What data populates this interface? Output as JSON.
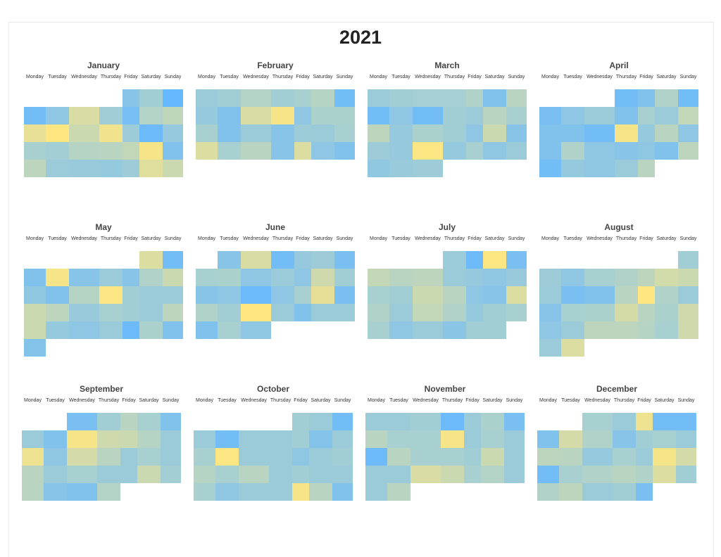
{
  "chart_data": {
    "type": "heatmap",
    "title": "2021",
    "year": 2021,
    "weekdays": [
      "Monday",
      "Tuesday",
      "Wednesday",
      "Thursday",
      "Friday",
      "Saturday",
      "Sunday"
    ],
    "color_scale": [
      "#66b8ff",
      "#a8d0d0",
      "#ffe680"
    ],
    "value_range": [
      0,
      1
    ],
    "months": [
      {
        "name": "January",
        "start_offset": 4,
        "days": 31,
        "values": [
          0.25,
          0.45,
          0.0,
          0.1,
          0.3,
          0.78,
          0.44,
          0.12,
          0.56,
          0.64,
          0.86,
          1.0,
          0.7,
          0.92,
          0.42,
          0.05,
          0.36,
          0.5,
          0.46,
          0.58,
          0.6,
          0.65,
          0.95,
          0.2,
          0.62,
          0.4,
          0.38,
          0.35,
          0.42,
          0.82,
          0.7
        ]
      },
      {
        "name": "February",
        "start_offset": 0,
        "days": 28,
        "values": [
          0.4,
          0.45,
          0.56,
          0.45,
          0.5,
          0.58,
          0.1,
          0.35,
          0.2,
          0.78,
          0.95,
          0.3,
          0.52,
          0.52,
          0.5,
          0.2,
          0.4,
          0.25,
          0.42,
          0.4,
          0.5,
          0.8,
          0.5,
          0.6,
          0.25,
          0.8,
          0.3,
          0.2
        ]
      },
      {
        "name": "March",
        "start_offset": 0,
        "days": 31,
        "values": [
          0.4,
          0.45,
          0.48,
          0.48,
          0.55,
          0.2,
          0.6,
          0.1,
          0.3,
          0.1,
          0.45,
          0.4,
          0.6,
          0.5,
          0.62,
          0.35,
          0.52,
          0.45,
          0.3,
          0.7,
          0.25,
          0.42,
          0.36,
          0.98,
          0.35,
          0.5,
          0.3,
          0.4,
          0.32,
          0.38,
          0.42
        ]
      },
      {
        "name": "April",
        "start_offset": 3,
        "days": 30,
        "values": [
          0.1,
          0.2,
          0.55,
          0.1,
          0.15,
          0.3,
          0.4,
          0.2,
          0.5,
          0.4,
          0.65,
          0.2,
          0.2,
          0.1,
          0.95,
          0.35,
          0.6,
          0.3,
          0.2,
          0.55,
          0.3,
          0.25,
          0.3,
          0.2,
          0.62,
          0.1,
          0.35,
          0.3,
          0.4,
          0.6
        ]
      },
      {
        "name": "May",
        "start_offset": 5,
        "days": 31,
        "values": [
          0.8,
          0.1,
          0.2,
          0.95,
          0.25,
          0.4,
          0.25,
          0.55,
          0.7,
          0.32,
          0.2,
          0.58,
          0.98,
          0.45,
          0.4,
          0.4,
          0.7,
          0.62,
          0.38,
          0.5,
          0.45,
          0.4,
          0.62,
          0.7,
          0.35,
          0.3,
          0.4,
          0.05,
          0.52,
          0.2,
          0.22
        ]
      },
      {
        "name": "June",
        "start_offset": 1,
        "days": 30,
        "values": [
          0.25,
          0.78,
          0.1,
          0.36,
          0.42,
          0.15,
          0.5,
          0.52,
          0.3,
          0.4,
          0.3,
          0.72,
          0.45,
          0.25,
          0.3,
          0.05,
          0.3,
          0.5,
          0.85,
          0.15,
          0.55,
          0.45,
          1.0,
          0.4,
          0.2,
          0.4,
          0.4,
          0.2,
          0.5,
          0.3
        ]
      },
      {
        "name": "July",
        "start_offset": 3,
        "days": 31,
        "values": [
          0.4,
          0.05,
          0.98,
          0.15,
          0.66,
          0.6,
          0.62,
          0.4,
          0.35,
          0.3,
          0.38,
          0.5,
          0.45,
          0.7,
          0.6,
          0.3,
          0.25,
          0.8,
          0.55,
          0.4,
          0.65,
          0.55,
          0.35,
          0.45,
          0.5,
          0.5,
          0.3,
          0.4,
          0.28,
          0.45,
          0.45
        ]
      },
      {
        "name": "August",
        "start_offset": 6,
        "days": 31,
        "values": [
          0.45,
          0.42,
          0.3,
          0.5,
          0.55,
          0.62,
          0.74,
          0.7,
          0.4,
          0.15,
          0.2,
          0.6,
          1.0,
          0.55,
          0.4,
          0.25,
          0.5,
          0.52,
          0.76,
          0.6,
          0.52,
          0.72,
          0.3,
          0.4,
          0.62,
          0.62,
          0.58,
          0.5,
          0.72,
          0.4,
          0.8
        ]
      },
      {
        "name": "September",
        "start_offset": 2,
        "days": 30,
        "values": [
          0.15,
          0.45,
          0.6,
          0.5,
          0.2,
          0.4,
          0.2,
          0.95,
          0.72,
          0.7,
          0.58,
          0.4,
          0.9,
          0.3,
          0.75,
          0.6,
          0.4,
          0.5,
          0.4,
          0.6,
          0.4,
          0.5,
          0.4,
          0.4,
          0.7,
          0.46,
          0.6,
          0.25,
          0.2,
          0.56
        ]
      },
      {
        "name": "October",
        "start_offset": 4,
        "days": 31,
        "values": [
          0.45,
          0.4,
          0.1,
          0.4,
          0.1,
          0.4,
          0.4,
          0.45,
          0.22,
          0.4,
          0.5,
          0.98,
          0.4,
          0.4,
          0.3,
          0.4,
          0.45,
          0.58,
          0.5,
          0.6,
          0.4,
          0.45,
          0.4,
          0.4,
          0.5,
          0.3,
          0.4,
          0.4,
          0.95,
          0.6,
          0.2
        ]
      },
      {
        "name": "November",
        "start_offset": 0,
        "days": 30,
        "values": [
          0.4,
          0.4,
          0.45,
          0.05,
          0.4,
          0.52,
          0.15,
          0.6,
          0.5,
          0.5,
          0.95,
          0.4,
          0.5,
          0.4,
          0.05,
          0.6,
          0.5,
          0.5,
          0.45,
          0.7,
          0.4,
          0.4,
          0.4,
          0.78,
          0.7,
          0.5,
          0.56,
          0.4,
          0.4,
          0.6
        ]
      },
      {
        "name": "December",
        "start_offset": 2,
        "days": 31,
        "values": [
          0.5,
          0.4,
          0.9,
          0.1,
          0.1,
          0.2,
          0.75,
          0.55,
          0.25,
          0.45,
          0.5,
          0.4,
          0.62,
          0.6,
          0.35,
          0.5,
          0.4,
          0.95,
          0.75,
          0.1,
          0.5,
          0.55,
          0.6,
          0.55,
          0.8,
          0.45,
          0.55,
          0.62,
          0.4,
          0.45,
          0.15
        ]
      }
    ]
  }
}
